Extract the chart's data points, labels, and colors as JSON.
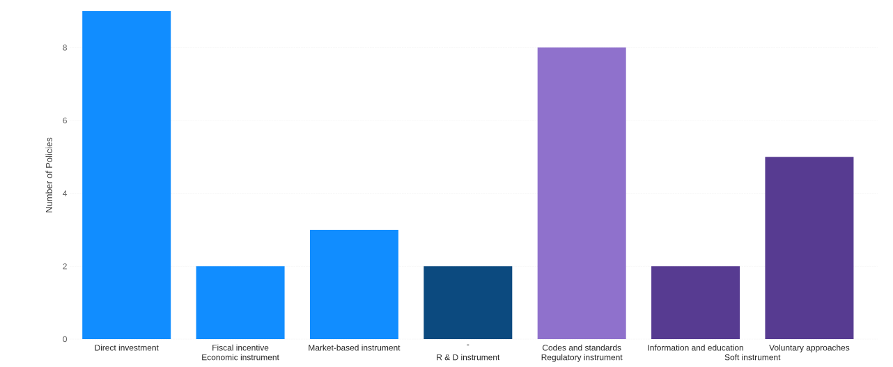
{
  "chart_data": {
    "type": "bar",
    "ylabel": "Number of Policies",
    "categories": [
      "Direct investment",
      "Fiscal incentive",
      "Market-based instrument",
      "-",
      "Codes and standards",
      "Information and education",
      "Voluntary approaches"
    ],
    "values": [
      9,
      2,
      3,
      2,
      8,
      2,
      5
    ],
    "colors": [
      "#118dff",
      "#118dff",
      "#118dff",
      "#0c4a7f",
      "#8f71cc",
      "#573b91",
      "#573b91"
    ],
    "annotations": [
      "Economic instrument",
      "R & D instrument",
      "Regulatory instrument",
      "Soft instrument"
    ],
    "ylim": [
      0,
      9
    ],
    "yticks": [
      0,
      2,
      4,
      6,
      8
    ],
    "grid": "y"
  }
}
